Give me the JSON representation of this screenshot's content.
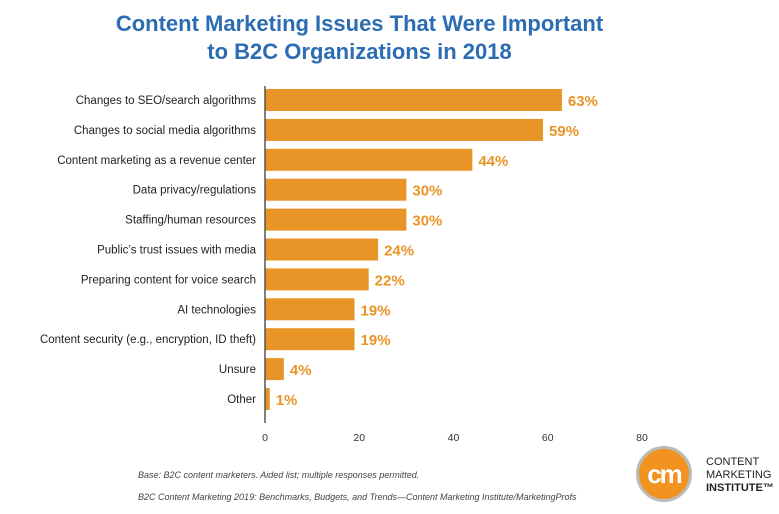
{
  "chart_data": {
    "type": "bar",
    "orientation": "horizontal",
    "title": [
      "Content Marketing Issues That Were Important",
      "to B2C Organizations in 2018"
    ],
    "categories": [
      "Changes to SEO/search algorithms",
      "Changes to social media algorithms",
      "Content marketing as a revenue center",
      "Data privacy/regulations",
      "Staffing/human resources",
      "Public’s trust issues with media",
      "Preparing content for voice search",
      "AI technologies",
      "Content security (e.g., encryption, ID theft)",
      "Unsure",
      "Other"
    ],
    "values": [
      63,
      59,
      44,
      30,
      30,
      24,
      22,
      19,
      19,
      4,
      1
    ],
    "data_labels": [
      "63%",
      "59%",
      "44%",
      "30%",
      "30%",
      "24%",
      "22%",
      "19%",
      "19%",
      "4%",
      "1%"
    ],
    "xlim": [
      0,
      80
    ],
    "xticks": [
      "0",
      "20",
      "40",
      "60",
      "80"
    ],
    "xlabel": "",
    "ylabel": "",
    "grid": false,
    "colors": {
      "bar": "#e99426",
      "label": "#e99426",
      "title": "#2b6cb3"
    }
  },
  "footnotes": {
    "base": "Base: B2C content marketers. Aided list; multiple responses permitted.",
    "source": "B2C Content Marketing 2019: Benchmarks, Budgets, and Trends—Content Marketing Institute/MarketingProfs"
  },
  "logo": {
    "mark": "cm",
    "line1": "CONTENT",
    "line2": "MARKETING",
    "line3": "INSTITUTE™"
  }
}
